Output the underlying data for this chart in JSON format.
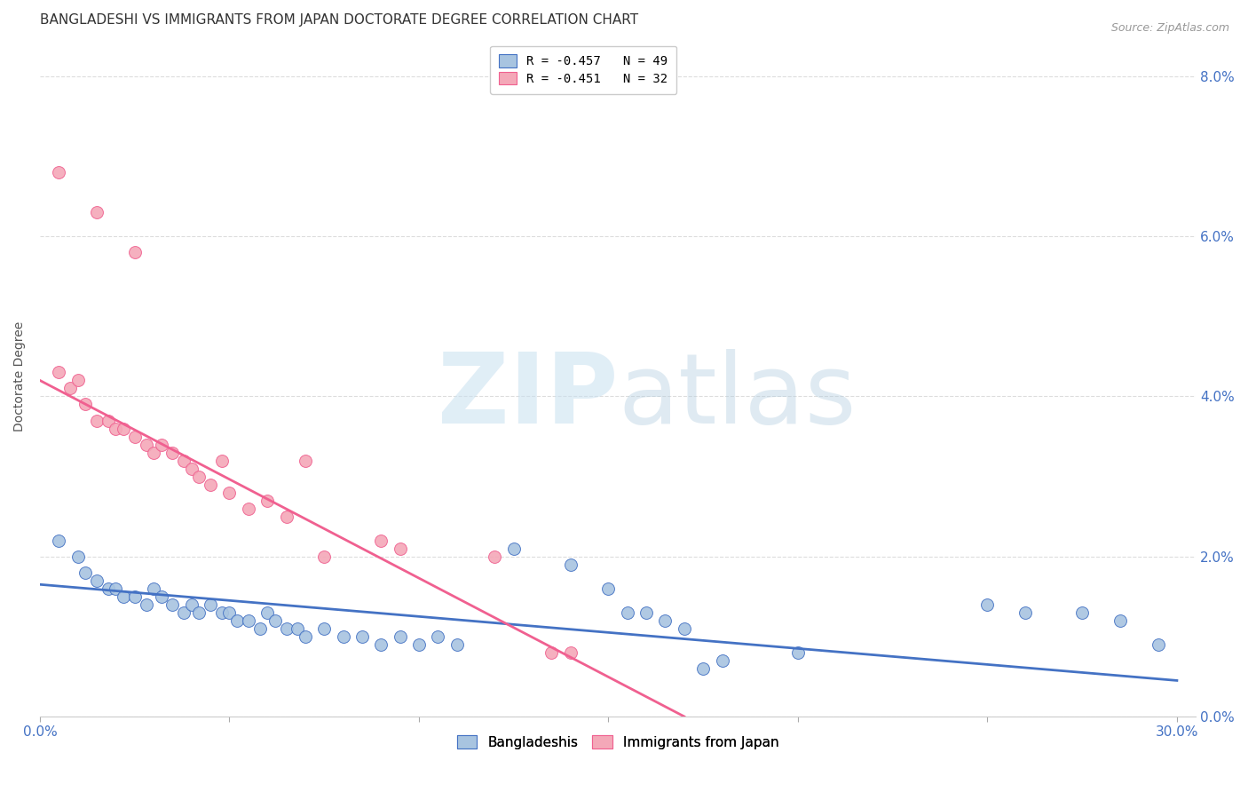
{
  "title": "BANGLADESHI VS IMMIGRANTS FROM JAPAN DOCTORATE DEGREE CORRELATION CHART",
  "source": "Source: ZipAtlas.com",
  "ylabel": "Doctorate Degree",
  "legend_blue_label": "R = -0.457   N = 49",
  "legend_pink_label": "R = -0.451   N = 32",
  "legend_bottom_blue": "Bangladeshis",
  "legend_bottom_pink": "Immigrants from Japan",
  "blue_color": "#a8c4e0",
  "pink_color": "#f4a8b8",
  "blue_line_color": "#4472c4",
  "pink_line_color": "#f06090",
  "blue_scatter": [
    [
      0.5,
      2.2
    ],
    [
      1.0,
      2.0
    ],
    [
      1.2,
      1.8
    ],
    [
      1.5,
      1.7
    ],
    [
      1.8,
      1.6
    ],
    [
      2.0,
      1.6
    ],
    [
      2.2,
      1.5
    ],
    [
      2.5,
      1.5
    ],
    [
      2.8,
      1.4
    ],
    [
      3.0,
      1.6
    ],
    [
      3.2,
      1.5
    ],
    [
      3.5,
      1.4
    ],
    [
      3.8,
      1.3
    ],
    [
      4.0,
      1.4
    ],
    [
      4.2,
      1.3
    ],
    [
      4.5,
      1.4
    ],
    [
      4.8,
      1.3
    ],
    [
      5.0,
      1.3
    ],
    [
      5.2,
      1.2
    ],
    [
      5.5,
      1.2
    ],
    [
      5.8,
      1.1
    ],
    [
      6.0,
      1.3
    ],
    [
      6.2,
      1.2
    ],
    [
      6.5,
      1.1
    ],
    [
      6.8,
      1.1
    ],
    [
      7.0,
      1.0
    ],
    [
      7.5,
      1.1
    ],
    [
      8.0,
      1.0
    ],
    [
      8.5,
      1.0
    ],
    [
      9.0,
      0.9
    ],
    [
      9.5,
      1.0
    ],
    [
      10.0,
      0.9
    ],
    [
      10.5,
      1.0
    ],
    [
      11.0,
      0.9
    ],
    [
      12.5,
      2.1
    ],
    [
      14.0,
      1.9
    ],
    [
      15.0,
      1.6
    ],
    [
      15.5,
      1.3
    ],
    [
      16.0,
      1.3
    ],
    [
      16.5,
      1.2
    ],
    [
      17.0,
      1.1
    ],
    [
      17.5,
      0.6
    ],
    [
      18.0,
      0.7
    ],
    [
      20.0,
      0.8
    ],
    [
      25.0,
      1.4
    ],
    [
      26.0,
      1.3
    ],
    [
      27.5,
      1.3
    ],
    [
      28.5,
      1.2
    ],
    [
      29.5,
      0.9
    ]
  ],
  "pink_scatter": [
    [
      0.5,
      4.3
    ],
    [
      0.8,
      4.1
    ],
    [
      1.0,
      4.2
    ],
    [
      1.2,
      3.9
    ],
    [
      1.5,
      3.7
    ],
    [
      1.8,
      3.7
    ],
    [
      2.0,
      3.6
    ],
    [
      2.2,
      3.6
    ],
    [
      2.5,
      3.5
    ],
    [
      2.8,
      3.4
    ],
    [
      3.0,
      3.3
    ],
    [
      3.2,
      3.4
    ],
    [
      3.5,
      3.3
    ],
    [
      3.8,
      3.2
    ],
    [
      4.0,
      3.1
    ],
    [
      4.2,
      3.0
    ],
    [
      4.5,
      2.9
    ],
    [
      4.8,
      3.2
    ],
    [
      5.0,
      2.8
    ],
    [
      5.5,
      2.6
    ],
    [
      6.0,
      2.7
    ],
    [
      6.5,
      2.5
    ],
    [
      7.0,
      3.2
    ],
    [
      7.5,
      2.0
    ],
    [
      9.0,
      2.2
    ],
    [
      9.5,
      2.1
    ],
    [
      0.5,
      6.8
    ],
    [
      1.5,
      6.3
    ],
    [
      2.5,
      5.8
    ],
    [
      12.0,
      2.0
    ],
    [
      13.5,
      0.8
    ],
    [
      14.0,
      0.8
    ]
  ],
  "blue_line_x": [
    0.0,
    30.0
  ],
  "blue_line_y": [
    1.65,
    0.45
  ],
  "pink_line_x": [
    0.0,
    17.0
  ],
  "pink_line_y": [
    4.2,
    0.0
  ],
  "xlim": [
    0.0,
    30.5
  ],
  "ylim": [
    0.0,
    8.5
  ],
  "x_ticks": [
    0.0,
    5.0,
    10.0,
    15.0,
    20.0,
    25.0,
    30.0
  ],
  "x_tick_labels": [
    "0.0%",
    "",
    "",
    "",
    "",
    "",
    "30.0%"
  ],
  "y_ticks": [
    0.0,
    2.0,
    4.0,
    6.0,
    8.0
  ],
  "y_tick_labels": [
    "0.0%",
    "2.0%",
    "4.0%",
    "6.0%",
    "8.0%"
  ],
  "grid_color": "#dddddd",
  "background_color": "#ffffff"
}
